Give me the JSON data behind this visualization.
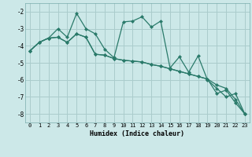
{
  "xlabel": "Humidex (Indice chaleur)",
  "background_color": "#cce8e8",
  "grid_color": "#aacccc",
  "line_color": "#2a7a6a",
  "x": [
    0,
    1,
    2,
    3,
    4,
    5,
    6,
    7,
    8,
    9,
    10,
    11,
    12,
    13,
    14,
    15,
    16,
    17,
    18,
    19,
    20,
    21,
    22,
    23
  ],
  "line1": [
    -4.3,
    -3.8,
    -3.55,
    -3.0,
    -3.5,
    -2.1,
    -3.0,
    -3.3,
    -4.2,
    -4.7,
    -2.6,
    -2.55,
    -2.3,
    -2.9,
    -2.55,
    -5.3,
    -4.65,
    -5.55,
    -4.6,
    -6.0,
    -6.5,
    -7.0,
    -6.8,
    -8.0
  ],
  "line2": [
    -4.3,
    -3.8,
    -3.55,
    -3.5,
    -3.8,
    -3.3,
    -3.5,
    -4.5,
    -4.55,
    -4.75,
    -4.85,
    -4.9,
    -4.95,
    -5.1,
    -5.2,
    -5.35,
    -5.5,
    -5.65,
    -5.8,
    -5.95,
    -6.3,
    -6.5,
    -7.15,
    -8.0
  ],
  "line3": [
    -4.3,
    -3.8,
    -3.55,
    -3.5,
    -3.8,
    -3.3,
    -3.5,
    -4.5,
    -4.55,
    -4.75,
    -4.85,
    -4.9,
    -4.95,
    -5.1,
    -5.2,
    -5.35,
    -5.5,
    -5.65,
    -5.8,
    -5.95,
    -6.8,
    -6.6,
    -7.35,
    -8.0
  ],
  "ylim": [
    -8.5,
    -1.5
  ],
  "yticks": [
    -8,
    -7,
    -6,
    -5,
    -4,
    -3,
    -2
  ],
  "xticks": [
    0,
    1,
    2,
    3,
    4,
    5,
    6,
    7,
    8,
    9,
    10,
    11,
    12,
    13,
    14,
    15,
    16,
    17,
    18,
    19,
    20,
    21,
    22,
    23
  ]
}
